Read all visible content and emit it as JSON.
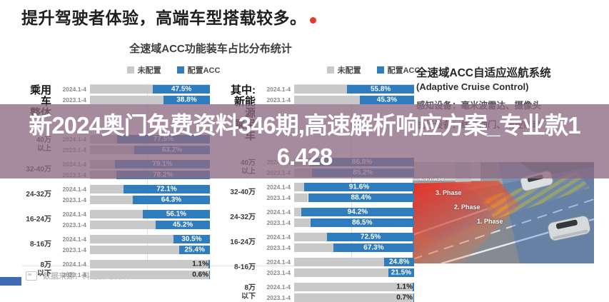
{
  "page": {
    "main_title": "提升驾驶者体验，高端车型搭载较多。",
    "chart_section_title": "全速域ACC功能装车占比分布统计",
    "footer_source": "数据来源：科瑞咨询调研"
  },
  "legend": {
    "not_equipped": "未配置",
    "equipped": "配置ACC"
  },
  "overlay": {
    "full_text": "新2024奥门兔费资料346期,高速解析响应方案_专业款16.428",
    "line1": "新2024奥门兔费资料346期,高速解析响应方案_专业款1",
    "line2": "6.428"
  },
  "right_panel": {
    "title": "全速域ACC自适应巡航系统",
    "subtitle": "(Adaptive Cruise Control)",
    "sensors_line": "感知设备：毫米波雷达、摄像头",
    "actuators_line": "执行设备：线控油门、线控制动",
    "phases": [
      "4. Phase",
      "3. Phase",
      "2. Phase",
      "1. Phase"
    ]
  },
  "colors": {
    "bar_blue": "#2f7cbe",
    "bar_gray": "#c9c9c9",
    "banner": "rgba(141,106,131,0.78)",
    "title_accent_red": "#e23b2e"
  },
  "chart_data": [
    {
      "type": "bar",
      "title": "乘用车整体",
      "orientation": "horizontal-stacked",
      "unit": "%",
      "xlim": [
        0,
        100
      ],
      "legend": [
        "未配置",
        "配置ACC"
      ],
      "legend_position": "top",
      "grid": "50%-vertical-line",
      "groups": [
        {
          "label_lines": [
            "乘用车",
            "整体"
          ],
          "big": true,
          "rows": [
            {
              "year": "2024.1-4",
              "value": 47.5
            },
            {
              "year": "2023.1-4",
              "value": 38.8
            }
          ]
        },
        {
          "label_lines": [
            "40万",
            "以上"
          ],
          "rows": [
            {
              "year": "2024.1-4",
              "value": 77.5
            },
            {
              "year": "2023.1-4",
              "value": 63.2
            }
          ]
        },
        {
          "label_lines": [
            "32-40万"
          ],
          "rows": [
            {
              "year": "2024.1-4",
              "value": 79.1
            },
            {
              "year": "2023.1-4",
              "value": 78.2
            }
          ]
        },
        {
          "label_lines": [
            "24-32万"
          ],
          "rows": [
            {
              "year": "2024.1-4",
              "value": 72.1
            },
            {
              "year": "2023.1-4",
              "value": 64.3
            }
          ]
        },
        {
          "label_lines": [
            "16-24万"
          ],
          "rows": [
            {
              "year": "2024.1-4",
              "value": 56.1
            },
            {
              "year": "2023.1-4",
              "value": 45.2
            }
          ]
        },
        {
          "label_lines": [
            "8-16万"
          ],
          "rows": [
            {
              "year": "2024.1-4",
              "value": 30.5
            },
            {
              "year": "2023.1-4",
              "value": 25.4
            }
          ]
        },
        {
          "label_lines": [
            "8万",
            "以下"
          ],
          "rows": [
            {
              "year": "2024.1-4",
              "value": 1.1
            },
            {
              "year": "2023.1-4",
              "value": 0.6
            }
          ]
        }
      ]
    },
    {
      "type": "bar",
      "title": "其中:新能源乘用车",
      "orientation": "horizontal-stacked",
      "unit": "%",
      "xlim": [
        0,
        100
      ],
      "legend": [
        "未配置",
        "配置ACC"
      ],
      "legend_position": "top",
      "grid": "50%-vertical-line",
      "groups": [
        {
          "label_lines": [
            "其中:",
            "新能源",
            "乘用车"
          ],
          "big": true,
          "rows": [
            {
              "year": "2024.1-4",
              "value": 55.8
            },
            {
              "year": "2023.1-4",
              "value": 45.3
            }
          ]
        },
        {
          "label_lines": [
            "40万",
            "以上"
          ],
          "rows": [
            {
              "year": "2024.1-4",
              "value": 86.8
            },
            {
              "year": "2023.1-4",
              "value": 85.2
            }
          ]
        },
        {
          "label_lines": [
            "32-40万"
          ],
          "rows": [
            {
              "year": "2024.1-4",
              "value": 91.6
            },
            {
              "year": "2023.1-4",
              "value": 88.4
            }
          ]
        },
        {
          "label_lines": [
            "24-32万"
          ],
          "rows": [
            {
              "year": "2024.1-4",
              "value": 94.2
            },
            {
              "year": "2023.1-4",
              "value": 86.5
            }
          ]
        },
        {
          "label_lines": [
            "16-24万"
          ],
          "rows": [
            {
              "year": "2024.1-4",
              "value": 72.5
            },
            {
              "year": "2023.1-4",
              "value": 67.3
            }
          ]
        },
        {
          "label_lines": [
            "8-16万"
          ],
          "rows": [
            {
              "year": "2024.1-4",
              "value": 24.8
            },
            {
              "year": "2023.1-4",
              "value": 21.5
            }
          ]
        },
        {
          "label_lines": [
            "8万",
            "以下"
          ],
          "rows": [
            {
              "year": "2024.1-4",
              "value": 1.1
            },
            {
              "year": "2023.1-4",
              "value": 0.7
            }
          ]
        }
      ]
    }
  ]
}
